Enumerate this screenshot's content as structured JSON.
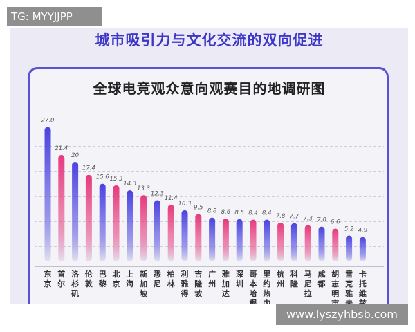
{
  "watermark": "TG: MYYJJPP",
  "site_url": "www.lyszyhbsb.com",
  "banner": "城市吸引力与文化交流的双向促进",
  "colors": {
    "blue": "#4a43e0",
    "pink": "#e63a7c",
    "accent": "#5a52d6"
  },
  "chart_data": {
    "type": "bar",
    "title": "全球电竞观众意向观赛目的地调研图",
    "categories": [
      "东京",
      "首尔",
      "洛杉矶",
      "伦敦",
      "巴黎",
      "北京",
      "上海",
      "新加坡",
      "悉尼",
      "柏林",
      "利雅得",
      "吉隆坡",
      "广州",
      "雅加达",
      "深圳",
      "哥本哈根",
      "里约热内卢",
      "杭州",
      "科隆",
      "马尼拉",
      "成都",
      "胡志明市",
      "雷克雅未克",
      "卡托维兹"
    ],
    "values": [
      27.0,
      21.4,
      20,
      17.4,
      15.6,
      15.3,
      14.3,
      13.3,
      12.3,
      11.4,
      10.3,
      9.5,
      8.8,
      8.6,
      8.5,
      8.4,
      8.4,
      7.8,
      7.7,
      7.3,
      7.0,
      6.6,
      5.2,
      4.9
    ],
    "value_labels": [
      "27.0",
      "21.4",
      "20",
      "17.4",
      "15.6",
      "15.3",
      "14.3",
      "13.3",
      "12.3",
      "11.4",
      "10.3",
      "9.5",
      "8.8",
      "8.6",
      "8.5",
      "8.4",
      "8.4",
      "7.8",
      "7.7",
      "7.3",
      "7.0",
      "6.6",
      "5.2",
      "4.9"
    ],
    "bar_colors": [
      "blue",
      "pink",
      "blue",
      "pink",
      "blue",
      "pink",
      "blue",
      "pink",
      "blue",
      "pink",
      "blue",
      "pink",
      "blue",
      "pink",
      "blue",
      "pink",
      "blue",
      "pink",
      "blue",
      "pink",
      "blue",
      "pink",
      "blue",
      "blue"
    ],
    "ylim": [
      0,
      27
    ],
    "grid": true,
    "gridlines": [
      5,
      10,
      15,
      20,
      25
    ]
  }
}
